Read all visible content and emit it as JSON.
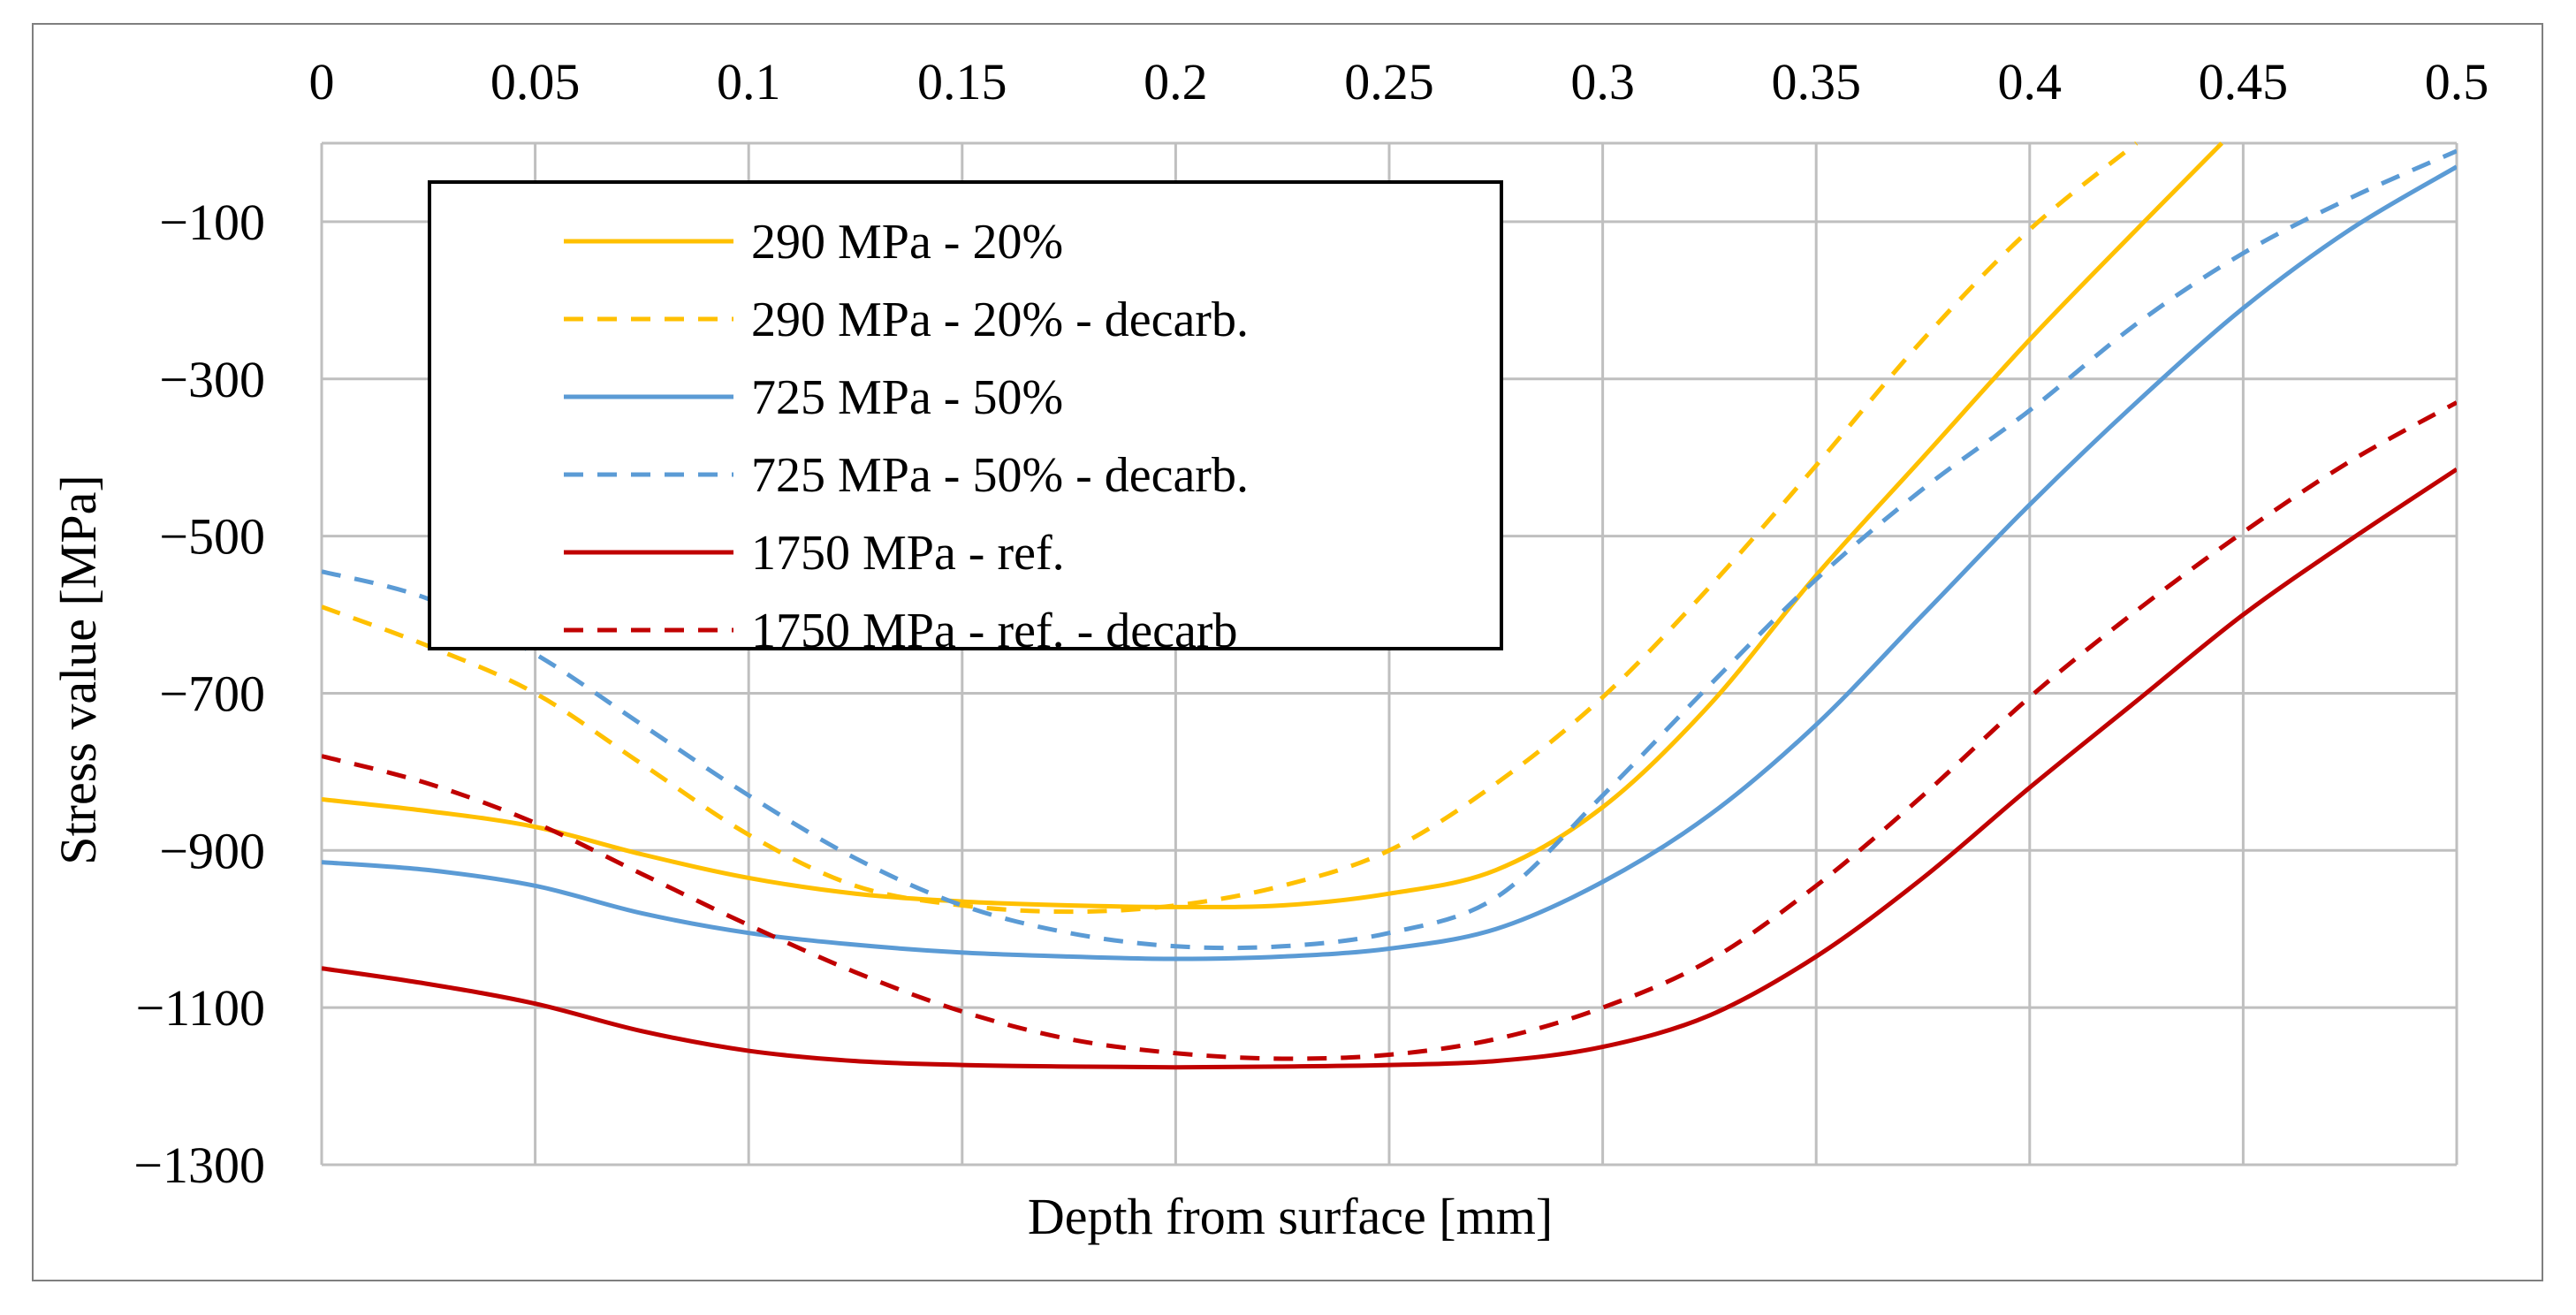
{
  "chart_data": {
    "type": "line",
    "title": "",
    "xlabel": "Depth from surface [mm]",
    "ylabel": "Stress value [MPa]",
    "xlim": [
      0,
      0.5
    ],
    "ylim": [
      -1300,
      0
    ],
    "x_ticks": [
      "0",
      "0.05",
      "0.1",
      "0.15",
      "0.2",
      "0.25",
      "0.3",
      "0.35",
      "0.4",
      "0.45",
      "0.5"
    ],
    "y_ticks": [
      "−100",
      "−300",
      "−500",
      "−700",
      "−900",
      "−1100",
      "−1300"
    ],
    "x_axis_position": "top",
    "grid": true,
    "legend_position": "top-left",
    "series": [
      {
        "name": "290 MPa - 20%",
        "color": "#ffc000",
        "style": "solid",
        "x": [
          0,
          0.025,
          0.05,
          0.075,
          0.1,
          0.125,
          0.15,
          0.175,
          0.2,
          0.225,
          0.25,
          0.275,
          0.3,
          0.325,
          0.35,
          0.375,
          0.4,
          0.425,
          0.445
        ],
        "y": [
          -835,
          -850,
          -870,
          -905,
          -935,
          -955,
          -965,
          -970,
          -972,
          -970,
          -955,
          -925,
          -845,
          -715,
          -550,
          -400,
          -250,
          -110,
          0
        ]
      },
      {
        "name": "290 MPa - 20%  - decarb.",
        "color": "#ffc000",
        "style": "dashed",
        "x": [
          0,
          0.025,
          0.05,
          0.075,
          0.1,
          0.125,
          0.15,
          0.175,
          0.2,
          0.225,
          0.25,
          0.275,
          0.3,
          0.325,
          0.35,
          0.375,
          0.4,
          0.425
        ],
        "y": [
          -590,
          -640,
          -700,
          -790,
          -880,
          -945,
          -970,
          -978,
          -970,
          -945,
          -900,
          -815,
          -705,
          -565,
          -410,
          -250,
          -110,
          0
        ]
      },
      {
        "name": "725 MPa - 50%",
        "color": "#5b9bd5",
        "style": "solid",
        "x": [
          0,
          0.025,
          0.05,
          0.075,
          0.1,
          0.125,
          0.15,
          0.175,
          0.2,
          0.225,
          0.25,
          0.275,
          0.3,
          0.325,
          0.35,
          0.375,
          0.4,
          0.425,
          0.45,
          0.475,
          0.5
        ],
        "y": [
          -915,
          -925,
          -945,
          -980,
          -1005,
          -1020,
          -1030,
          -1035,
          -1038,
          -1035,
          -1025,
          -1000,
          -940,
          -855,
          -740,
          -600,
          -460,
          -330,
          -210,
          -110,
          -30
        ]
      },
      {
        "name": "725 MPa - 50% - decarb.",
        "color": "#5b9bd5",
        "style": "dashed",
        "x": [
          0,
          0.025,
          0.05,
          0.075,
          0.1,
          0.125,
          0.15,
          0.175,
          0.2,
          0.225,
          0.25,
          0.275,
          0.3,
          0.325,
          0.35,
          0.375,
          0.4,
          0.425,
          0.45,
          0.475,
          0.5
        ],
        "y": [
          -545,
          -580,
          -650,
          -740,
          -830,
          -910,
          -970,
          -1005,
          -1022,
          -1022,
          -1005,
          -960,
          -830,
          -690,
          -555,
          -440,
          -340,
          -230,
          -140,
          -70,
          -10
        ]
      },
      {
        "name": "1750 MPa - ref.",
        "color": "#c00000",
        "style": "solid",
        "x": [
          0,
          0.025,
          0.05,
          0.075,
          0.1,
          0.125,
          0.15,
          0.175,
          0.2,
          0.225,
          0.25,
          0.275,
          0.3,
          0.325,
          0.35,
          0.375,
          0.4,
          0.425,
          0.45,
          0.475,
          0.5
        ],
        "y": [
          -1050,
          -1070,
          -1095,
          -1130,
          -1155,
          -1168,
          -1173,
          -1175,
          -1176,
          -1175,
          -1173,
          -1168,
          -1150,
          -1110,
          -1035,
          -935,
          -820,
          -710,
          -600,
          -505,
          -415
        ]
      },
      {
        "name": "1750 MPa - ref. - decarb",
        "color": "#c00000",
        "style": "dashed",
        "x": [
          0,
          0.025,
          0.05,
          0.075,
          0.1,
          0.125,
          0.15,
          0.175,
          0.2,
          0.225,
          0.25,
          0.275,
          0.3,
          0.325,
          0.35,
          0.375,
          0.4,
          0.425,
          0.45,
          0.475,
          0.5
        ],
        "y": [
          -780,
          -815,
          -865,
          -930,
          -995,
          -1055,
          -1105,
          -1140,
          -1158,
          -1165,
          -1160,
          -1140,
          -1100,
          -1040,
          -945,
          -830,
          -705,
          -595,
          -495,
          -405,
          -330
        ]
      }
    ]
  }
}
